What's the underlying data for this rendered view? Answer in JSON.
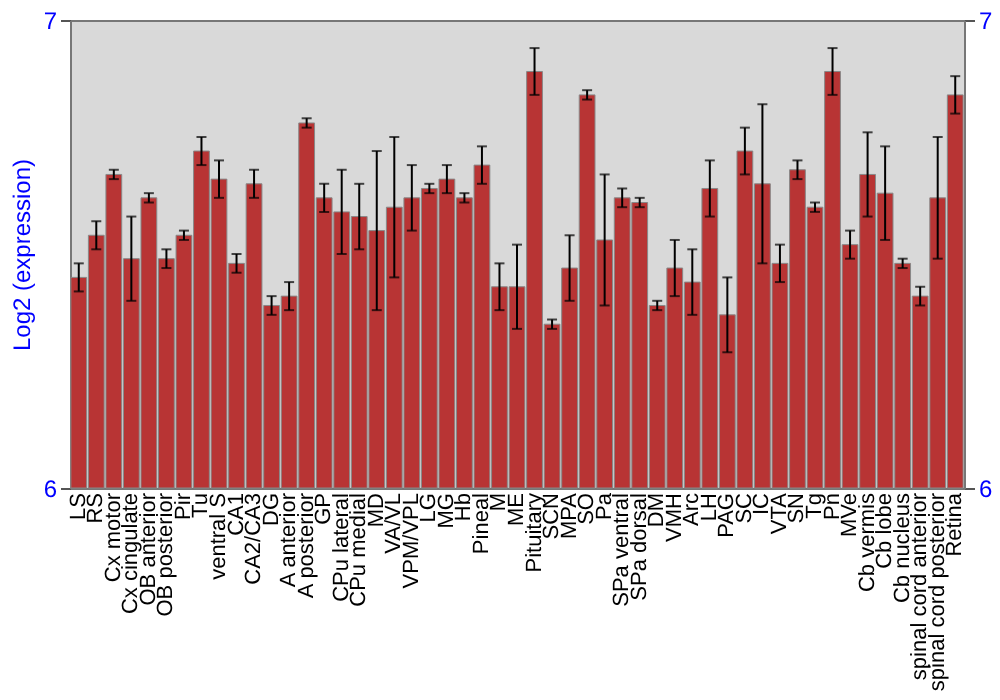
{
  "chart_data": {
    "type": "bar",
    "ylabel": "Log2 (expression)",
    "categories": [
      "LS",
      "RS",
      "Cx motor",
      "Cx cingulate",
      "OB anterior",
      "OB posterior",
      "Pir",
      "Tu",
      "ventral S",
      "CA1",
      "CA2/CA3",
      "DG",
      "A anterior",
      "A posterior",
      "GP",
      "CPu lateral",
      "CPu medial",
      "MD",
      "VA/VL",
      "VPM/VPL",
      "LG",
      "MG",
      "Hb",
      "Pineal",
      "M",
      "ME",
      "Pituitary",
      "SCN",
      "MPA",
      "SO",
      "Pa",
      "SPa ventral",
      "SPa dorsal",
      "DM",
      "VMH",
      "Arc",
      "LH",
      "PAG",
      "SC",
      "IC",
      "VTA",
      "SN",
      "Tg",
      "Pn",
      "MVe",
      "Cb vermis",
      "Cb lobe",
      "Cb nucleus",
      "spinal cord anterior",
      "spinal cord posterior",
      "Retina"
    ],
    "values": [
      6.45,
      6.54,
      6.67,
      6.49,
      6.62,
      6.49,
      6.54,
      6.72,
      6.66,
      6.48,
      6.65,
      6.39,
      6.41,
      6.78,
      6.62,
      6.59,
      6.58,
      6.55,
      6.6,
      6.62,
      6.64,
      6.66,
      6.62,
      6.69,
      6.43,
      6.43,
      6.89,
      6.35,
      6.47,
      6.84,
      6.53,
      6.62,
      6.61,
      6.39,
      6.47,
      6.44,
      6.64,
      6.37,
      6.72,
      6.65,
      6.48,
      6.68,
      6.6,
      6.89,
      6.52,
      6.67,
      6.63,
      6.48,
      6.41,
      6.62,
      6.84
    ],
    "errors": [
      0.03,
      0.03,
      0.01,
      0.09,
      0.01,
      0.02,
      0.01,
      0.03,
      0.04,
      0.02,
      0.03,
      0.02,
      0.03,
      0.01,
      0.03,
      0.09,
      0.07,
      0.17,
      0.15,
      0.07,
      0.01,
      0.03,
      0.01,
      0.04,
      0.05,
      0.09,
      0.05,
      0.01,
      0.07,
      0.01,
      0.14,
      0.02,
      0.01,
      0.01,
      0.06,
      0.07,
      0.06,
      0.08,
      0.05,
      0.17,
      0.04,
      0.02,
      0.01,
      0.05,
      0.03,
      0.09,
      0.1,
      0.01,
      0.02,
      0.13,
      0.04
    ],
    "color": "#b83434",
    "ylim": [
      6,
      7
    ],
    "yticks": [
      6,
      7
    ],
    "y2lim": [
      6,
      7
    ],
    "y2ticks": [
      6,
      7
    ],
    "grid": false
  }
}
